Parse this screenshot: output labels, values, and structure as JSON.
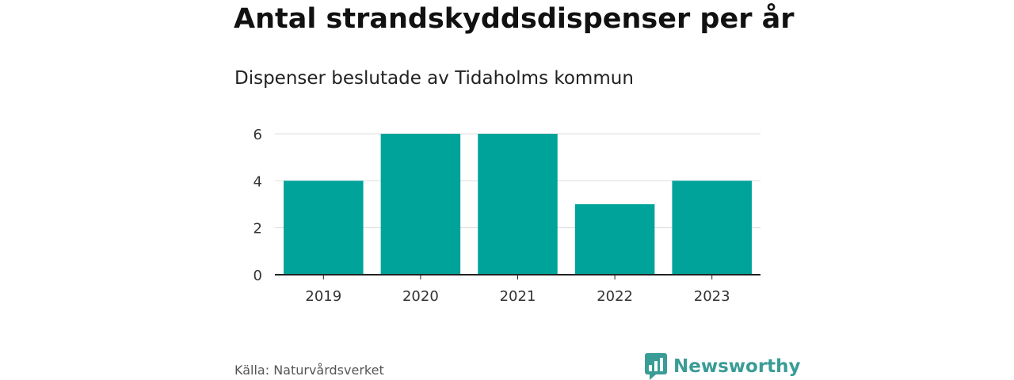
{
  "title": "Antal strandskyddsdispenser per år",
  "subtitle": "Dispenser beslutade av Tidaholms kommun",
  "source": "Källa: Naturvårdsverket",
  "brand": {
    "name": "Newsworthy",
    "icon": "newsworthy-logo-icon",
    "color": "#3a9c96"
  },
  "colors": {
    "bar": "#00a39a",
    "grid": "#dddddd",
    "axis": "#222222",
    "tick_text": "#333333"
  },
  "chart_data": {
    "type": "bar",
    "title": "Antal strandskyddsdispenser per år",
    "subtitle": "Dispenser beslutade av Tidaholms kommun",
    "categories": [
      "2019",
      "2020",
      "2021",
      "2022",
      "2023"
    ],
    "values": [
      4,
      6,
      6,
      3,
      4
    ],
    "xlabel": "",
    "ylabel": "",
    "ylim": [
      0,
      6
    ],
    "yticks": [
      0,
      2,
      4,
      6
    ],
    "grid": true,
    "legend": "none"
  }
}
